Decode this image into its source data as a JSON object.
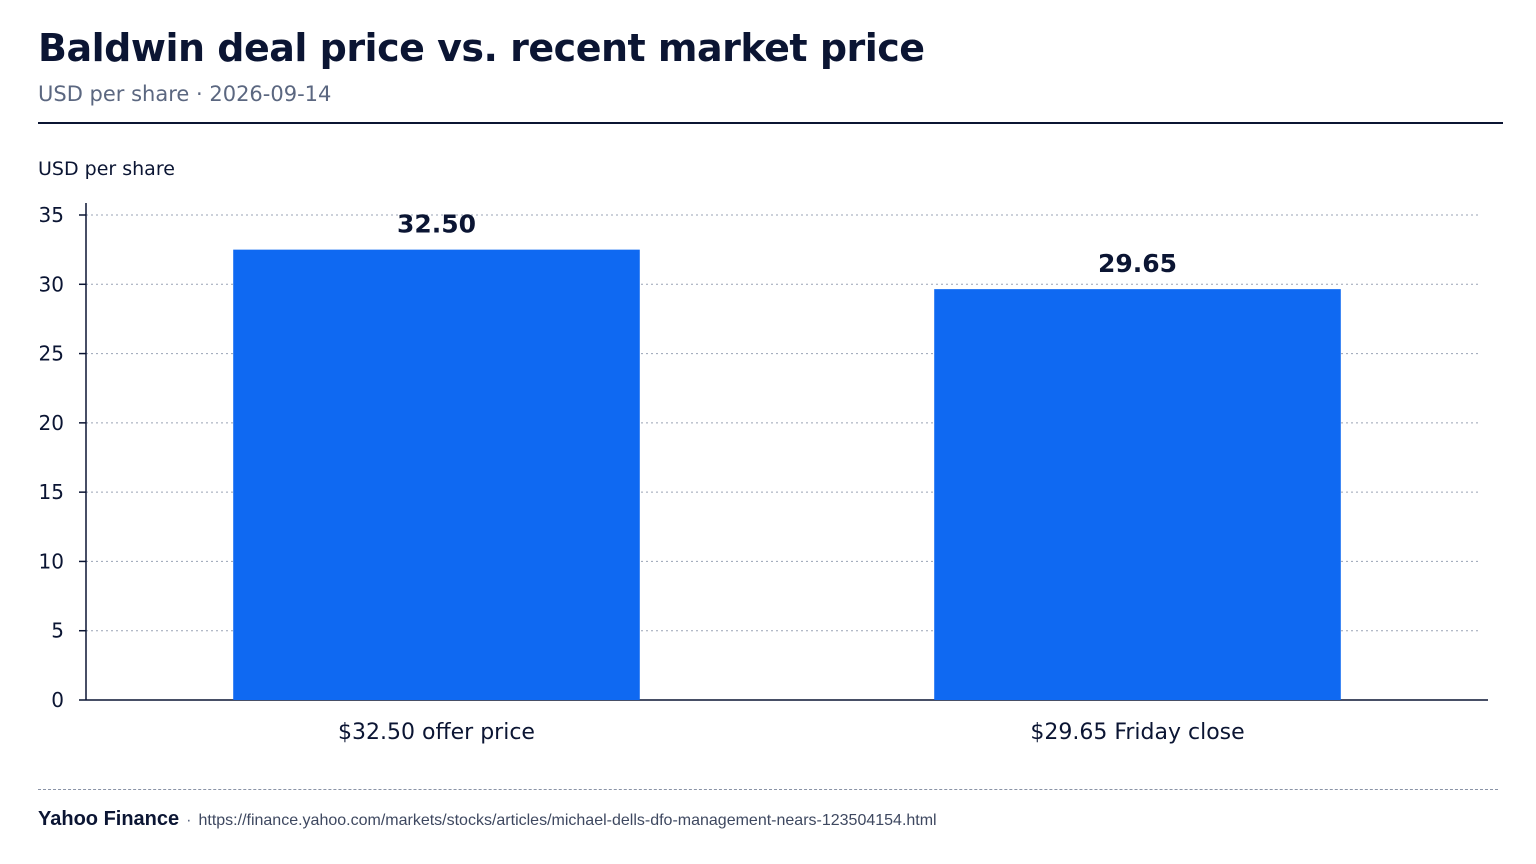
{
  "header": {
    "title": "Baldwin deal price vs. recent market price",
    "subtitle": "USD per share · 2026-09-14"
  },
  "chart_data": {
    "type": "bar",
    "categories": [
      "$32.50 offer price",
      "$29.65 Friday close"
    ],
    "values": [
      32.5,
      29.65
    ],
    "data_labels": [
      "32.50",
      "29.65"
    ],
    "ylabel": "USD per share",
    "ylim": [
      0,
      35
    ],
    "yticks": [
      0,
      5,
      10,
      15,
      20,
      25,
      30,
      35
    ],
    "grid": true,
    "bar_color": "#0f69f2"
  },
  "footer": {
    "source": "Yahoo Finance",
    "separator": "·",
    "url": "https://finance.yahoo.com/markets/stocks/articles/michael-dells-dfo-management-nears-123504154.html"
  }
}
